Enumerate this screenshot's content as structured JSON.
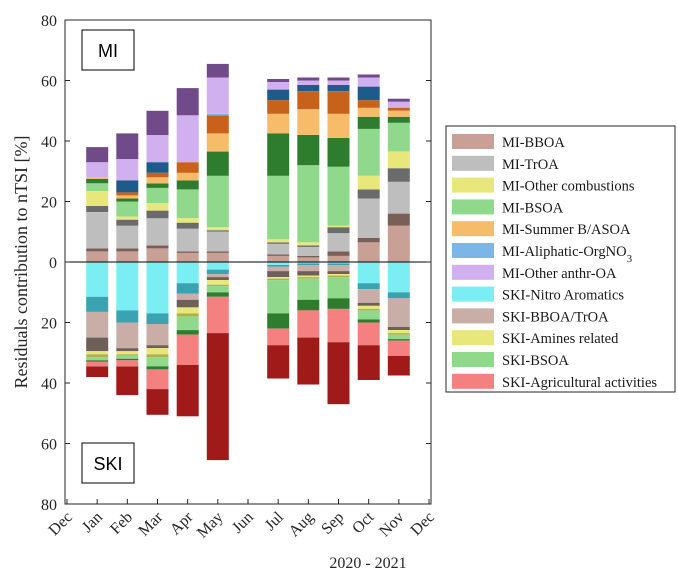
{
  "chart_data": {
    "type": "bar",
    "stacked": true,
    "mirrored": true,
    "ylabel": "Residuals contribution to nTSI [%]",
    "xlabel": "2020 - 2021",
    "ylim_top": [
      0,
      80
    ],
    "ylim_bottom": [
      0,
      80
    ],
    "y_ticks": [
      "80",
      "60",
      "40",
      "20",
      "0",
      "20",
      "40",
      "60",
      "80"
    ],
    "top_panel_label": "MI",
    "bottom_panel_label": "SKI",
    "categories": [
      "Dec",
      "Jan",
      "Feb",
      "Mar",
      "Apr",
      "May",
      "Jun",
      "Jul",
      "Aug",
      "Sep",
      "Oct",
      "Nov",
      "Dec"
    ],
    "top_series": [
      {
        "name": "MI-BBOA",
        "color": "#c9a096",
        "values": [
          0,
          3.5,
          3.5,
          4.5,
          3,
          3,
          0,
          2,
          1.5,
          2,
          6.5,
          12,
          0
        ]
      },
      {
        "name": "",
        "color": "#7a5f58",
        "values": [
          0,
          1,
          1,
          1,
          0.5,
          0.5,
          0,
          0.5,
          0.5,
          1.5,
          1.5,
          4,
          0
        ]
      },
      {
        "name": "MI-TrOA",
        "color": "#bebebe",
        "values": [
          0,
          12,
          7.5,
          9,
          7.5,
          6.5,
          0,
          3.5,
          3,
          6,
          13,
          10.5,
          0
        ]
      },
      {
        "name": "",
        "color": "#6b6b6b",
        "values": [
          0,
          2,
          2,
          2.5,
          2,
          0.5,
          0,
          0.5,
          0.5,
          2,
          3,
          4.5,
          0
        ]
      },
      {
        "name": "MI-Other combustions",
        "color": "#e8e87a",
        "values": [
          0,
          5,
          1,
          2.5,
          1.5,
          1,
          0,
          1,
          1,
          0.5,
          4.5,
          5.5,
          0
        ]
      },
      {
        "name": "MI-BSOA",
        "color": "#8fd88c",
        "values": [
          0,
          2.5,
          5,
          5,
          9.5,
          17,
          0,
          21,
          25.5,
          19.5,
          15.5,
          9.5,
          0
        ]
      },
      {
        "name": "",
        "color": "#2e7d2e",
        "values": [
          0,
          1.5,
          1,
          1.5,
          3,
          8,
          0,
          14,
          10,
          9.5,
          4,
          2,
          0
        ]
      },
      {
        "name": "MI-Summer B/ASOA",
        "color": "#f7bc6a",
        "values": [
          0,
          0.5,
          1,
          2,
          2.5,
          6,
          0,
          6.5,
          8.5,
          8,
          3,
          2,
          0
        ]
      },
      {
        "name": "",
        "color": "#c8621b",
        "values": [
          0,
          0,
          1,
          1.5,
          3.5,
          6,
          0,
          4.5,
          6,
          7.5,
          2.5,
          1,
          0
        ]
      },
      {
        "name": "MI-Aliphatic-OrgNO3",
        "color": "#7ab7e8",
        "values": [
          0,
          0,
          0,
          0,
          0,
          0.5,
          0,
          0,
          0,
          0,
          0,
          0,
          0
        ]
      },
      {
        "name": "",
        "color": "#1e5a8a",
        "values": [
          0,
          0,
          4,
          3.5,
          0,
          0,
          0,
          3.5,
          2,
          2,
          4.5,
          0,
          0
        ]
      },
      {
        "name": "MI-Other anthr-OA",
        "color": "#d1b0ef",
        "values": [
          0,
          5,
          7,
          9,
          15.5,
          12,
          0,
          2.5,
          1.5,
          1.5,
          3,
          2,
          0
        ]
      },
      {
        "name": "",
        "color": "#714a8a",
        "values": [
          0,
          5,
          8.5,
          8,
          9,
          4.5,
          0,
          1,
          1,
          1,
          1,
          1,
          0
        ]
      }
    ],
    "bottom_series": [
      {
        "name": "SKI-Nitro Aromatics",
        "color": "#7aeef2",
        "values": [
          0,
          11.5,
          16,
          17,
          7,
          2.5,
          0,
          1,
          0.5,
          0.5,
          7,
          10,
          0
        ]
      },
      {
        "name": "",
        "color": "#3aa3b1",
        "values": [
          0,
          5,
          4,
          3.5,
          3.5,
          1.5,
          0,
          0.5,
          0.5,
          0.5,
          2,
          2,
          0
        ]
      },
      {
        "name": "SKI-BBOA/TrOA",
        "color": "#c8aea6",
        "values": [
          0,
          8.5,
          8.5,
          7,
          2,
          1,
          0,
          1.5,
          2,
          2,
          4.5,
          9.5,
          0
        ]
      },
      {
        "name": "",
        "color": "#6e6059",
        "values": [
          0,
          4.5,
          1,
          1,
          2.5,
          1,
          0,
          2,
          1.5,
          1,
          1,
          1,
          0
        ]
      },
      {
        "name": "SKI-Amines related",
        "color": "#e8e87a",
        "values": [
          0,
          1,
          1,
          2,
          2,
          1.5,
          0,
          0.5,
          0.5,
          0.5,
          1,
          1,
          0
        ]
      },
      {
        "name": "",
        "color": "#b0b04a",
        "values": [
          0,
          1,
          0.5,
          1,
          1,
          0.5,
          0,
          0.5,
          0.5,
          0.5,
          0.5,
          0.5,
          0
        ]
      },
      {
        "name": "SKI-BSOA",
        "color": "#8fd88c",
        "values": [
          0,
          1,
          1,
          3,
          4.5,
          2,
          0,
          11,
          7,
          7,
          3,
          1.5,
          0
        ]
      },
      {
        "name": "",
        "color": "#2e7d2e",
        "values": [
          0,
          0.5,
          0.5,
          1,
          1.5,
          1.5,
          0,
          5,
          3.5,
          3.5,
          1,
          0.5,
          0
        ]
      },
      {
        "name": "SKI-Agricultural activities",
        "color": "#f58080",
        "values": [
          0,
          1.5,
          2,
          6.5,
          10,
          12,
          0,
          5.5,
          9,
          11,
          7.5,
          5,
          0
        ]
      },
      {
        "name": "",
        "color": "#a01a1a",
        "values": [
          0,
          3.5,
          9.5,
          8.5,
          17,
          42,
          0,
          11,
          15.5,
          20.5,
          11.5,
          6.5,
          0
        ]
      }
    ],
    "legend": [
      {
        "label": "MI-BBOA",
        "color": "#c9a096"
      },
      {
        "label": "MI-TrOA",
        "color": "#bebebe"
      },
      {
        "label": "MI-Other combustions",
        "color": "#e8e87a"
      },
      {
        "label": "MI-BSOA",
        "color": "#8fd88c"
      },
      {
        "label": "MI-Summer B/ASOA",
        "color": "#f7bc6a"
      },
      {
        "label": "MI-Aliphatic-OrgNO",
        "sub": "3",
        "color": "#7ab7e8"
      },
      {
        "label": "MI-Other anthr-OA",
        "color": "#d1b0ef"
      },
      {
        "label": "SKI-Nitro Aromatics",
        "color": "#7aeef2"
      },
      {
        "label": "SKI-BBOA/TrOA",
        "color": "#c8aea6"
      },
      {
        "label": "SKI-Amines related",
        "color": "#e8e87a"
      },
      {
        "label": "SKI-BSOA",
        "color": "#8fd88c"
      },
      {
        "label": "SKI-Agricultural activities",
        "color": "#f58080"
      }
    ],
    "legend_placement": "right",
    "grid": false
  }
}
